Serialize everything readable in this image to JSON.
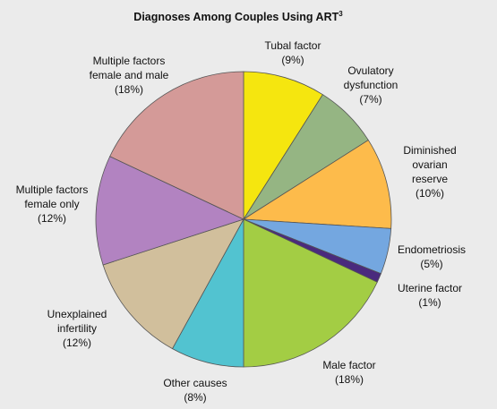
{
  "chart_data": {
    "type": "pie",
    "title": "Diagnoses Among Couples Using ART",
    "title_superscript": "3",
    "start": "12 o'clock, clockwise",
    "slices": [
      {
        "lines": [
          "Tubal factor",
          "(9%)"
        ],
        "value": 9,
        "color": "#f5e60f"
      },
      {
        "lines": [
          "Ovulatory",
          "dysfunction",
          "(7%)"
        ],
        "value": 7,
        "color": "#95b583"
      },
      {
        "lines": [
          "Diminished",
          "ovarian",
          "reserve",
          "(10%)"
        ],
        "value": 10,
        "color": "#fdbb4b"
      },
      {
        "lines": [
          "Endometriosis",
          "(5%)"
        ],
        "value": 5,
        "color": "#74a7e0"
      },
      {
        "lines": [
          "Uterine factor",
          "(1%)"
        ],
        "value": 1,
        "color": "#4a2a7d"
      },
      {
        "lines": [
          "Male factor",
          "(18%)"
        ],
        "value": 18,
        "color": "#a3cd44"
      },
      {
        "lines": [
          "Other causes",
          "(8%)"
        ],
        "value": 8,
        "color": "#52c3d0"
      },
      {
        "lines": [
          "Unexplained",
          "infertility",
          "(12%)"
        ],
        "value": 12,
        "color": "#d1bf9c"
      },
      {
        "lines": [
          "Multiple factors",
          "female only",
          "(12%)"
        ],
        "value": 12,
        "color": "#b283c1"
      },
      {
        "lines": [
          "Multiple factors",
          "female and male",
          "(18%)"
        ],
        "value": 18,
        "color": "#d49a98"
      }
    ]
  }
}
